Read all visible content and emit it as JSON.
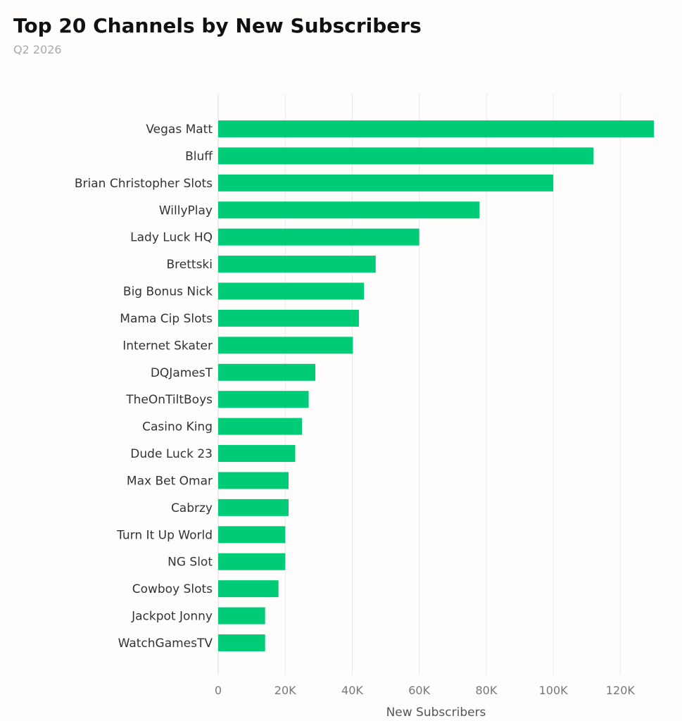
{
  "header": {
    "title": "Top 20 Channels by New Subscribers",
    "subtitle": "Q2 2026"
  },
  "colors": {
    "bar": "#00cc77",
    "grid": "#e8e8e8",
    "background": "#fffcfc"
  },
  "chart_data": {
    "type": "bar",
    "orientation": "horizontal",
    "title": "Top 20 Channels by New Subscribers",
    "subtitle": "Q2 2026",
    "xlabel": "New Subscribers",
    "ylabel": "",
    "xlim": [
      0,
      130000
    ],
    "x_ticks": [
      0,
      20000,
      40000,
      60000,
      80000,
      100000,
      120000
    ],
    "x_tick_labels": [
      "0",
      "20K",
      "40K",
      "60K",
      "80K",
      "100K",
      "120K"
    ],
    "grid": "vertical",
    "legend": "none",
    "categories": [
      "Vegas Matt",
      "Bluff",
      "Brian Christopher Slots",
      "WillyPlay",
      "Lady Luck HQ",
      "Brettski",
      "Big Bonus Nick",
      "Mama Cip Slots",
      "Internet Skater",
      "DQJamesT",
      "TheOnTiltBoys",
      "Casino King",
      "Dude Luck 23",
      "Max Bet Omar",
      "Cabrzy",
      "Turn It Up World",
      "NG Slot",
      "Cowboy Slots",
      "Jackpot Jonny",
      "WatchGamesTV"
    ],
    "values": [
      130000,
      112000,
      100000,
      78000,
      60000,
      47000,
      43500,
      42000,
      40200,
      29000,
      27000,
      25000,
      23000,
      21000,
      21000,
      20000,
      20000,
      18000,
      14000,
      14000
    ]
  }
}
